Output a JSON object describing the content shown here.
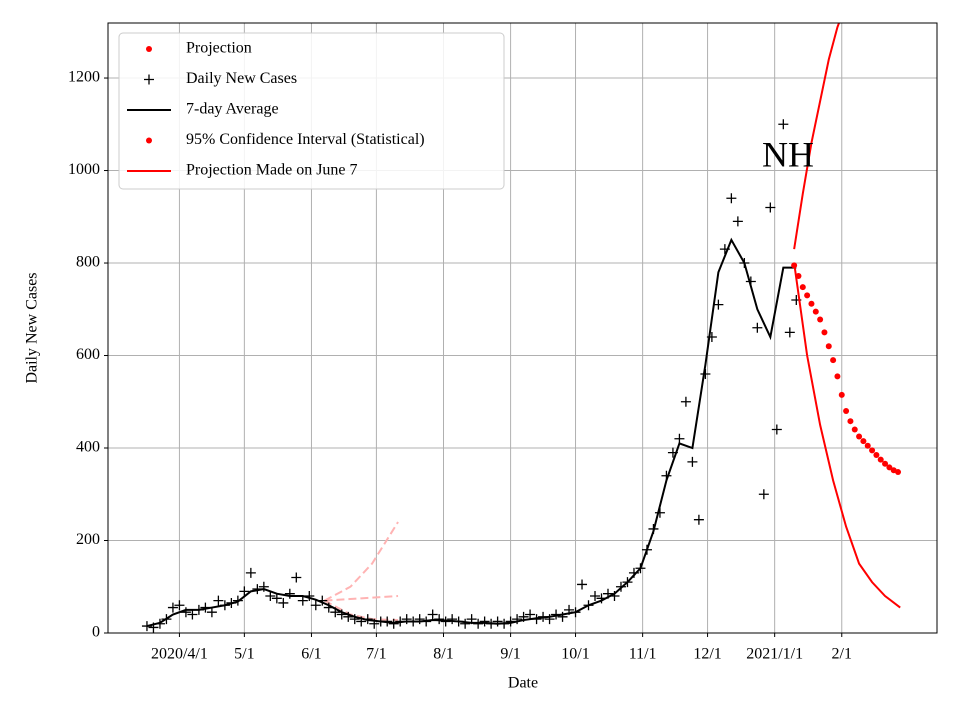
{
  "chart_data": {
    "type": "line",
    "annotation": "NH",
    "xlabel": "Date",
    "ylabel": "Daily New Cases",
    "xlim": [
      58,
      441
    ],
    "ylim": [
      0,
      1319
    ],
    "xticks": [
      {
        "value": 91,
        "label": "2020/4/1"
      },
      {
        "value": 121,
        "label": "5/1"
      },
      {
        "value": 152,
        "label": "6/1"
      },
      {
        "value": 182,
        "label": "7/1"
      },
      {
        "value": 213,
        "label": "8/1"
      },
      {
        "value": 244,
        "label": "9/1"
      },
      {
        "value": 274,
        "label": "10/1"
      },
      {
        "value": 305,
        "label": "11/1"
      },
      {
        "value": 335,
        "label": "12/1"
      },
      {
        "value": 366,
        "label": "2021/1/1"
      },
      {
        "value": 397,
        "label": "2/1"
      }
    ],
    "yticks": [
      0,
      200,
      400,
      600,
      800,
      1000,
      1200
    ],
    "grid": true,
    "legend": "upper left",
    "series": [
      {
        "name": "Projection",
        "color": "#ff0000",
        "legend_marker": "dot",
        "x": [
          375,
          377,
          379,
          381,
          383,
          385,
          387,
          389,
          391,
          393,
          395,
          397,
          399,
          401,
          403,
          405,
          407,
          409,
          411,
          413,
          415,
          417,
          419,
          421,
          423
        ],
        "values": [
          795,
          772,
          748,
          730,
          712,
          695,
          678,
          650,
          620,
          590,
          555,
          515,
          480,
          458,
          440,
          425,
          415,
          405,
          395,
          385,
          375,
          366,
          358,
          352,
          348
        ]
      },
      {
        "name": "Daily New Cases",
        "color": "#000000",
        "legend_marker": "plus",
        "x": [
          76,
          79,
          82,
          85,
          88,
          91,
          94,
          97,
          100,
          103,
          106,
          109,
          112,
          115,
          118,
          121,
          124,
          127,
          130,
          133,
          136,
          139,
          142,
          145,
          148,
          151,
          154,
          157,
          160,
          163,
          166,
          169,
          172,
          175,
          178,
          181,
          184,
          187,
          190,
          193,
          196,
          199,
          202,
          205,
          208,
          211,
          214,
          217,
          220,
          223,
          226,
          229,
          232,
          235,
          238,
          241,
          244,
          247,
          250,
          253,
          256,
          259,
          262,
          265,
          268,
          271,
          274,
          277,
          280,
          283,
          286,
          289,
          292,
          295,
          298,
          301,
          304,
          307,
          310,
          313,
          316,
          319,
          322,
          325,
          328,
          331,
          334,
          337,
          340,
          343,
          346,
          349,
          352,
          355,
          358,
          361,
          364,
          367,
          370,
          373,
          376
        ],
        "values": [
          15,
          12,
          20,
          30,
          55,
          60,
          45,
          40,
          50,
          55,
          45,
          70,
          60,
          65,
          70,
          90,
          130,
          95,
          100,
          80,
          75,
          65,
          85,
          120,
          70,
          80,
          60,
          70,
          55,
          45,
          40,
          35,
          30,
          25,
          30,
          20,
          25,
          25,
          20,
          25,
          30,
          25,
          30,
          25,
          40,
          30,
          25,
          30,
          25,
          20,
          30,
          20,
          25,
          20,
          25,
          20,
          25,
          30,
          35,
          40,
          30,
          35,
          30,
          40,
          35,
          50,
          45,
          105,
          60,
          80,
          75,
          85,
          80,
          100,
          110,
          130,
          140,
          180,
          225,
          260,
          340,
          390,
          420,
          500,
          370,
          245,
          560,
          640,
          710,
          830,
          940,
          890,
          800,
          760,
          660,
          300,
          920,
          440,
          1100,
          650,
          720
        ]
      },
      {
        "name": "7-day Average",
        "color": "#000000",
        "legend_marker": "line",
        "lines": [
          {
            "x": [
              76,
              82,
              88,
              94,
              100,
              106,
              112,
              118,
              124,
              130,
              136,
              142,
              148,
              154,
              160,
              166,
              172,
              178,
              184,
              190,
              196,
              202,
              208,
              214,
              220,
              226,
              232,
              238,
              244,
              250,
              256,
              262,
              268,
              274,
              280,
              286,
              292,
              298,
              304,
              310,
              316,
              322,
              328,
              334,
              340,
              346,
              352,
              358,
              364,
              370,
              376
            ],
            "values": [
              15,
              22,
              40,
              50,
              50,
              55,
              60,
              68,
              90,
              95,
              85,
              80,
              80,
              72,
              60,
              45,
              35,
              28,
              25,
              22,
              25,
              25,
              28,
              27,
              25,
              22,
              22,
              20,
              22,
              28,
              32,
              35,
              40,
              45,
              60,
              70,
              85,
              110,
              140,
              220,
              330,
              410,
              400,
              580,
              780,
              850,
              800,
              700,
              640,
              790,
              790
            ]
          }
        ]
      },
      {
        "name": "95% Confidence Interval (Statistical)",
        "color": "#ff0000",
        "legend_marker": "dot",
        "lines": [
          {
            "x": [
              375,
              379,
              383,
              387,
              391,
              395,
              399
            ],
            "values": [
              830,
              950,
              1060,
              1150,
              1240,
              1310,
              1360
            ]
          },
          {
            "x": [
              375,
              381,
              387,
              393,
              399,
              405,
              411,
              417,
              424
            ],
            "values": [
              800,
              600,
              450,
              330,
              230,
              150,
              110,
              80,
              55
            ]
          }
        ]
      },
      {
        "name": "Projection Made on June 7",
        "color": "#ff0000",
        "line_color": "#ffb3b3",
        "dashed": true,
        "legend_marker": "line",
        "lines": [
          {
            "x": [
              158,
              170,
              180,
              192
            ],
            "values": [
              70,
              100,
              150,
              240
            ]
          },
          {
            "x": [
              158,
              175,
              192
            ],
            "values": [
              70,
              75,
              80
            ]
          },
          {
            "x": [
              158,
              170,
              180,
              192
            ],
            "values": [
              70,
              40,
              30,
              28
            ]
          }
        ]
      }
    ]
  }
}
